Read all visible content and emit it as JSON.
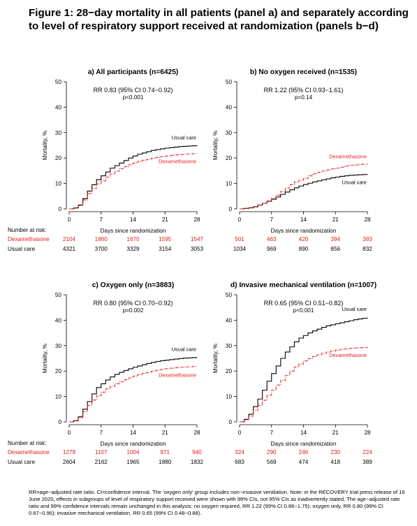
{
  "figure": {
    "title": "Figure 1: 28−day mortality in all patients (panel a) and separately according to level of respiratory support received at randomization (panels b−d)",
    "footnote": "RR=age−adjusted rate ratio. CI=confidence interval. The 'oxygen only' group includes non−invasive ventilation. Note: in the RECOVERY trial press release of 16 June 2020, effects in subgroups of level of respiratory support received were shown with 99% CIs, not 95% CIs as inadvertently stated. The age−adjusted rate ratio and 99% confidence intervals remain unchanged in this analysis: no oxygen required, RR 1.22 (99% CI 0.86−1.75); oxygen only, RR 0.80 (99% CI 0.67−0.96); invasive mechanical ventilation, RR 0.65 (99% CI 0.48−0.88)."
  },
  "colors": {
    "usual_care": "#000000",
    "dexamethasone": "#e8191b"
  },
  "chart_data": [
    {
      "type": "line",
      "title": "a) All participants (n=6425)",
      "rr_text": "RR 0.83 (95% CI 0.74−0.92)",
      "p_text": "p<0.001",
      "xlabel": "Days since randomization",
      "ylabel": "Mortality, %",
      "xlim": [
        0,
        28
      ],
      "ylim": [
        0,
        50
      ],
      "xticks": [
        0,
        7,
        14,
        21,
        28
      ],
      "yticks": [
        0,
        10,
        20,
        30,
        40,
        50
      ],
      "risk_header": "Number at risk:",
      "series": [
        {
          "name": "Usual care",
          "label": "Usual care",
          "style": "solid",
          "x": [
            0,
            1,
            2,
            3,
            4,
            5,
            6,
            7,
            8,
            9,
            10,
            11,
            12,
            13,
            14,
            15,
            16,
            17,
            18,
            19,
            20,
            21,
            22,
            23,
            24,
            25,
            26,
            27,
            28
          ],
          "y": [
            0,
            0.4,
            1.5,
            4,
            7,
            9.5,
            11.5,
            13,
            14.5,
            16,
            17,
            18,
            19,
            20,
            20.8,
            21.5,
            22,
            22.5,
            23,
            23.3,
            23.6,
            23.9,
            24.1,
            24.3,
            24.5,
            24.6,
            24.7,
            24.8,
            24.9
          ],
          "at_risk": [
            "4321",
            "3700",
            "3329",
            "3154",
            "3053"
          ]
        },
        {
          "name": "Dexamethasone",
          "label": "Dexamethasone",
          "style": "dashdot",
          "x": [
            0,
            1,
            2,
            3,
            4,
            5,
            6,
            7,
            8,
            9,
            10,
            11,
            12,
            13,
            14,
            15,
            16,
            17,
            18,
            19,
            20,
            21,
            22,
            23,
            24,
            25,
            26,
            27,
            28
          ],
          "y": [
            0,
            0.3,
            1.3,
            3.5,
            6,
            8,
            9.8,
            11,
            12.5,
            13.7,
            14.8,
            15.8,
            16.6,
            17.3,
            18,
            18.6,
            19.1,
            19.5,
            19.9,
            20.2,
            20.5,
            20.8,
            21,
            21.2,
            21.4,
            21.5,
            21.6,
            21.7,
            21.8
          ],
          "at_risk": [
            "2104",
            "1860",
            "1670",
            "1595",
            "1547"
          ]
        }
      ]
    },
    {
      "type": "line",
      "title": "b) No oxygen received (n=1535)",
      "rr_text": "RR 1.22 (95% CI 0.93−1.61)",
      "p_text": "p=0.14",
      "xlabel": "Days since randomization",
      "ylabel": "Mortality, %",
      "xlim": [
        0,
        28
      ],
      "ylim": [
        0,
        50
      ],
      "xticks": [
        0,
        7,
        14,
        21,
        28
      ],
      "yticks": [
        0,
        10,
        20,
        30,
        40,
        50
      ],
      "risk_header": "",
      "series": [
        {
          "name": "Usual care",
          "label": "Usual care",
          "style": "solid",
          "x": [
            0,
            1,
            2,
            3,
            4,
            5,
            6,
            7,
            8,
            9,
            10,
            11,
            12,
            13,
            14,
            15,
            16,
            17,
            18,
            19,
            20,
            21,
            22,
            23,
            24,
            25,
            26,
            27,
            28
          ],
          "y": [
            0,
            0.2,
            0.4,
            0.8,
            1.5,
            2.2,
            3,
            3.8,
            4.7,
            5.7,
            6.6,
            7.5,
            8.3,
            9,
            9.6,
            10.1,
            10.6,
            11,
            11.4,
            11.8,
            12.2,
            12.5,
            12.8,
            13,
            13.2,
            13.3,
            13.4,
            13.5,
            13.6
          ],
          "at_risk": [
            "1034",
            "969",
            "890",
            "856",
            "832"
          ]
        },
        {
          "name": "Dexamethasone",
          "label": "Dexamethasone",
          "style": "dashdot",
          "x": [
            0,
            1,
            2,
            3,
            4,
            5,
            6,
            7,
            8,
            9,
            10,
            11,
            12,
            13,
            14,
            15,
            16,
            17,
            18,
            19,
            20,
            21,
            22,
            23,
            24,
            25,
            26,
            27,
            28
          ],
          "y": [
            0,
            0.2,
            0.5,
            0.9,
            1.5,
            2.2,
            3.1,
            4.2,
            5.4,
            6.8,
            8.2,
            9.5,
            10.5,
            11.3,
            12,
            13,
            13.8,
            14.4,
            14.9,
            15.3,
            15.7,
            16,
            16.4,
            16.8,
            17.1,
            17.3,
            17.5,
            17.6,
            17.7
          ],
          "at_risk": [
            "501",
            "463",
            "420",
            "394",
            "383"
          ]
        }
      ]
    },
    {
      "type": "line",
      "title": "c) Oxygen only (n=3883)",
      "rr_text": "RR 0.80 (95% CI 0.70−0.92)",
      "p_text": "p=0.002",
      "xlabel": "Days since randomization",
      "ylabel": "Mortality, %",
      "xlim": [
        0,
        28
      ],
      "ylim": [
        0,
        50
      ],
      "xticks": [
        0,
        7,
        14,
        21,
        28
      ],
      "yticks": [
        0,
        10,
        20,
        30,
        40,
        50
      ],
      "risk_header": "Number at risk:",
      "series": [
        {
          "name": "Usual care",
          "label": "Usual care",
          "style": "solid",
          "x": [
            0,
            1,
            2,
            3,
            4,
            5,
            6,
            7,
            8,
            9,
            10,
            11,
            12,
            13,
            14,
            15,
            16,
            17,
            18,
            19,
            20,
            21,
            22,
            23,
            24,
            25,
            26,
            27,
            28
          ],
          "y": [
            0,
            0.5,
            2,
            5,
            8,
            11,
            13.5,
            15,
            16.5,
            17.7,
            18.7,
            19.5,
            20.2,
            20.9,
            21.5,
            22,
            22.5,
            23,
            23.4,
            23.8,
            24.1,
            24.3,
            24.5,
            24.7,
            24.9,
            25.1,
            25.2,
            25.3,
            25.4
          ],
          "at_risk": [
            "2604",
            "2162",
            "1965",
            "1880",
            "1832"
          ]
        },
        {
          "name": "Dexamethasone",
          "label": "Dexamethasone",
          "style": "dashdot",
          "x": [
            0,
            1,
            2,
            3,
            4,
            5,
            6,
            7,
            8,
            9,
            10,
            11,
            12,
            13,
            14,
            15,
            16,
            17,
            18,
            19,
            20,
            21,
            22,
            23,
            24,
            25,
            26,
            27,
            28
          ],
          "y": [
            0,
            0.4,
            1.6,
            4,
            6.5,
            8.6,
            10.3,
            11.7,
            13,
            14,
            15,
            15.8,
            16.6,
            17.3,
            18,
            18.6,
            19.1,
            19.5,
            19.9,
            20.3,
            20.6,
            20.9,
            21.1,
            21.3,
            21.5,
            21.6,
            21.7,
            21.8,
            21.9
          ],
          "at_risk": [
            "1279",
            "1107",
            "1004",
            "971",
            "940"
          ]
        }
      ]
    },
    {
      "type": "line",
      "title": "d) Invasive mechanical ventilation (n=1007)",
      "rr_text": "RR 0.65 (95% CI 0.51−0.82)",
      "p_text": "p<0.001",
      "xlabel": "Days since randomization",
      "ylabel": "Mortality, %",
      "xlim": [
        0,
        28
      ],
      "ylim": [
        0,
        50
      ],
      "xticks": [
        0,
        7,
        14,
        21,
        28
      ],
      "yticks": [
        0,
        10,
        20,
        30,
        40,
        50
      ],
      "risk_header": "",
      "series": [
        {
          "name": "Usual care",
          "label": "Usual care",
          "style": "solid",
          "x": [
            0,
            1,
            2,
            3,
            4,
            5,
            6,
            7,
            8,
            9,
            10,
            11,
            12,
            13,
            14,
            15,
            16,
            17,
            18,
            19,
            20,
            21,
            22,
            23,
            24,
            25,
            26,
            27,
            28
          ],
          "y": [
            0,
            1,
            3,
            6,
            9,
            12.5,
            16,
            19,
            22,
            25,
            27.5,
            29.5,
            31.5,
            33,
            34,
            35,
            35.8,
            36.5,
            37.2,
            37.8,
            38.2,
            38.6,
            39,
            39.4,
            39.8,
            40.2,
            40.5,
            40.8,
            41
          ],
          "at_risk": [
            "683",
            "569",
            "474",
            "418",
            "389"
          ]
        },
        {
          "name": "Dexamethasone",
          "label": "Dexamethasone",
          "style": "dashdot",
          "x": [
            0,
            1,
            2,
            3,
            4,
            5,
            6,
            7,
            8,
            9,
            10,
            11,
            12,
            13,
            14,
            15,
            16,
            17,
            18,
            19,
            20,
            21,
            22,
            23,
            24,
            25,
            26,
            27,
            28
          ],
          "y": [
            0,
            0.8,
            2.3,
            4.5,
            6.5,
            8.5,
            10.5,
            12.5,
            14.5,
            16.3,
            18.2,
            20,
            21.6,
            22.8,
            24,
            24.9,
            25.7,
            26.4,
            27,
            27.5,
            27.9,
            28.2,
            28.5,
            28.7,
            28.9,
            29.1,
            29.2,
            29.3,
            29.4
          ],
          "at_risk": [
            "324",
            "290",
            "246",
            "230",
            "224"
          ]
        }
      ]
    }
  ]
}
